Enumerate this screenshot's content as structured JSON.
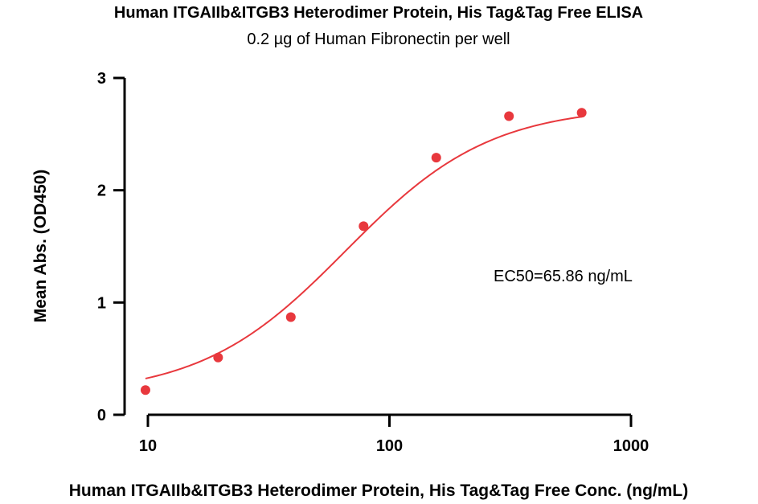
{
  "chart_data": {
    "type": "scatter",
    "title": "Human ITGAIIb&ITGB3 Heterodimer Protein, His Tag&Tag Free ELISA",
    "subtitle": "0.2 µg of Human Fibronectin per well",
    "xlabel": "Human ITGAIIb&ITGB3 Heterodimer Protein, His Tag&Tag Free Conc. (ng/mL)",
    "ylabel": "Mean Abs. (OD450)",
    "x_scale": "log",
    "xlim": [
      10,
      1000
    ],
    "ylim": [
      0,
      3
    ],
    "x_ticks": [
      10,
      100,
      1000
    ],
    "x_tick_labels": [
      "10",
      "100",
      "1000"
    ],
    "y_ticks": [
      0,
      1,
      2,
      3
    ],
    "y_tick_labels": [
      "0",
      "1",
      "2",
      "3"
    ],
    "grid": false,
    "point_color": "#e8383d",
    "curve_color": "#e8383d",
    "series": [
      {
        "x": [
          9.77,
          19.53,
          39.06,
          78.13,
          156.25,
          312.5,
          625
        ],
        "y": [
          0.22,
          0.51,
          0.87,
          1.68,
          2.29,
          2.66,
          2.69
        ]
      }
    ],
    "fit": {
      "bottom": 0.17,
      "top": 2.75,
      "ec50": 65.86,
      "hill": 1.45
    },
    "annotation": "EC50=65.86 ng/mL"
  }
}
